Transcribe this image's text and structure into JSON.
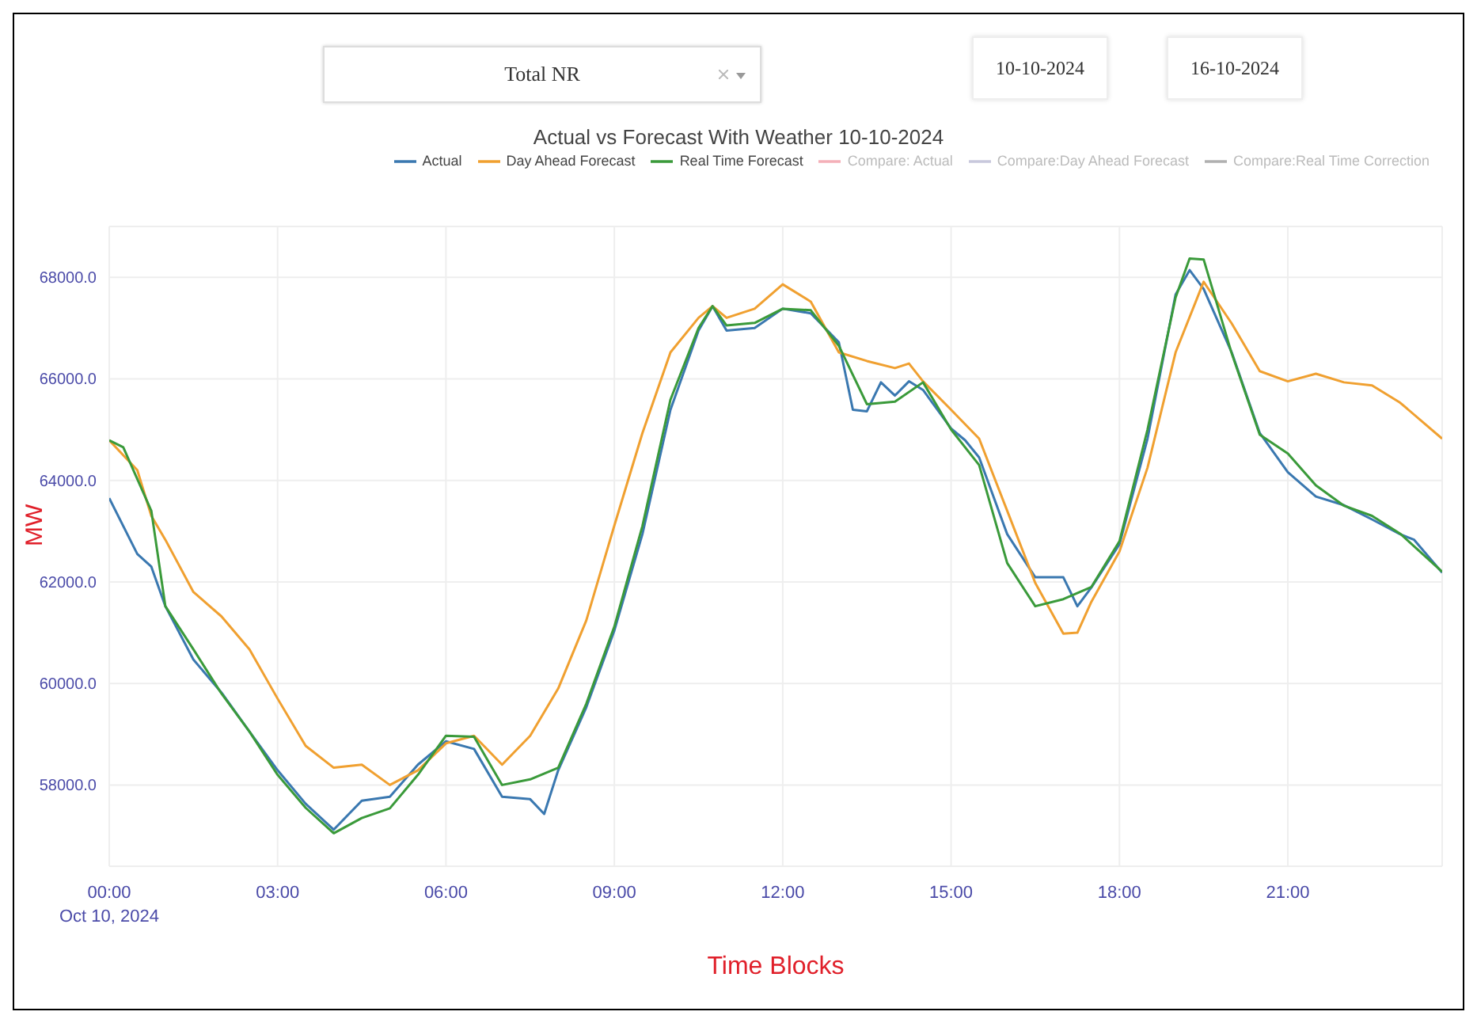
{
  "chart_data": {
    "type": "line",
    "title": "Actual vs Forecast With Weather 10-10-2024",
    "xlabel": "Time Blocks",
    "ylabel": "MW",
    "annotations": [
      "Total NR",
      "10-10-2024",
      "16-10-2024"
    ],
    "xlim": [
      0,
      23.75
    ],
    "ylim": [
      56400,
      69000
    ],
    "xticks": [
      {
        "value": 0,
        "label": "00:00\nOct 10, 2024"
      },
      {
        "value": 3,
        "label": "03:00"
      },
      {
        "value": 6,
        "label": "06:00"
      },
      {
        "value": 9,
        "label": "09:00"
      },
      {
        "value": 12,
        "label": "12:00"
      },
      {
        "value": 15,
        "label": "15:00"
      },
      {
        "value": 18,
        "label": "18:00"
      },
      {
        "value": 21,
        "label": "21:00"
      }
    ],
    "yticks": [
      {
        "value": 58000,
        "label": "58000.0"
      },
      {
        "value": 60000,
        "label": "60000.0"
      },
      {
        "value": 62000,
        "label": "62000.0"
      },
      {
        "value": 64000,
        "label": "64000.0"
      },
      {
        "value": 66000,
        "label": "66000.0"
      },
      {
        "value": 68000,
        "label": "68000.0"
      }
    ],
    "grid": true,
    "legend": "top right",
    "series": [
      {
        "name": "Actual",
        "color": "#3a78b0",
        "x": [
          0,
          0.5,
          0.75,
          1,
          1.5,
          2,
          2.5,
          3,
          3.5,
          4,
          4.5,
          5,
          5.5,
          6,
          6.5,
          7,
          7.5,
          7.75,
          8,
          8.5,
          9,
          9.5,
          10,
          10.5,
          10.75,
          11,
          11.5,
          12,
          12.5,
          13,
          13.25,
          13.5,
          13.75,
          14,
          14.25,
          14.5,
          15,
          15.25,
          15.5,
          16,
          16.5,
          17,
          17.25,
          17.5,
          18,
          18.5,
          19,
          19.25,
          19.5,
          20,
          20.5,
          21,
          21.5,
          22,
          22.5,
          23,
          23.25,
          23.75
        ],
        "values": [
          63650,
          62550,
          62300,
          61520,
          60470,
          59820,
          59050,
          58290,
          57630,
          57120,
          57690,
          57770,
          58400,
          58860,
          58710,
          57770,
          57720,
          57430,
          58290,
          59530,
          61040,
          62940,
          65390,
          66950,
          67430,
          66950,
          67000,
          67380,
          67290,
          66720,
          65390,
          65360,
          65930,
          65670,
          65950,
          65780,
          65020,
          64790,
          64450,
          62940,
          62090,
          62090,
          61520,
          61890,
          62740,
          64820,
          67660,
          68140,
          67770,
          66520,
          64930,
          64160,
          63680,
          63510,
          63230,
          62940,
          62830,
          62180
        ]
      },
      {
        "name": "Day Ahead Forecast",
        "color": "#f0a030",
        "x": [
          0,
          0.5,
          0.75,
          1,
          1.5,
          2,
          2.5,
          3,
          3.5,
          4,
          4.5,
          5,
          5.5,
          6,
          6.5,
          7,
          7.5,
          8,
          8.5,
          9,
          9.5,
          10,
          10.5,
          10.75,
          11,
          11.5,
          12,
          12.5,
          13,
          13.5,
          14,
          14.25,
          14.5,
          15,
          15.5,
          16,
          16.5,
          17,
          17.25,
          17.5,
          18,
          18.5,
          19,
          19.5,
          20,
          20.5,
          21,
          21.5,
          22,
          22.5,
          23,
          23.75
        ],
        "values": [
          64790,
          64200,
          63300,
          62830,
          61800,
          61320,
          60670,
          59700,
          58770,
          58340,
          58400,
          58000,
          58290,
          58820,
          58970,
          58400,
          58970,
          59900,
          61240,
          63110,
          64930,
          66520,
          67200,
          67430,
          67200,
          67380,
          67860,
          67520,
          66520,
          66350,
          66210,
          66300,
          65950,
          65390,
          64820,
          63400,
          61980,
          60980,
          61000,
          61610,
          62600,
          64250,
          66520,
          67910,
          67090,
          66150,
          65950,
          66100,
          65930,
          65870,
          65530,
          64820
        ]
      },
      {
        "name": "Real Time Forecast",
        "color": "#3a9a3a",
        "x": [
          0,
          0.25,
          0.75,
          1,
          1.5,
          2,
          2.5,
          3,
          3.5,
          4,
          4.5,
          5,
          5.5,
          6,
          6.5,
          7,
          7.5,
          8,
          8.5,
          9,
          9.5,
          10,
          10.5,
          10.75,
          11,
          11.5,
          12,
          12.5,
          13,
          13.5,
          14,
          14.5,
          15,
          15.5,
          16,
          16.5,
          17,
          17.5,
          18,
          18.5,
          19,
          19.25,
          19.5,
          20,
          20.5,
          21,
          21.5,
          22,
          22.5,
          23,
          23.75
        ],
        "values": [
          64790,
          64650,
          63400,
          61520,
          60670,
          59800,
          59050,
          58200,
          57550,
          57050,
          57350,
          57540,
          58200,
          58970,
          58950,
          58000,
          58110,
          58340,
          59600,
          61120,
          63100,
          65590,
          67000,
          67430,
          67050,
          67100,
          67380,
          67350,
          66650,
          65500,
          65550,
          65930,
          65000,
          64300,
          62370,
          61520,
          61660,
          61900,
          62800,
          65000,
          67600,
          68370,
          68350,
          66500,
          64900,
          64530,
          63900,
          63500,
          63300,
          62950,
          62200
        ]
      },
      {
        "name": "Compare: Actual",
        "color": "#f4b0b8"
      },
      {
        "name": "Compare:Day Ahead Forecast",
        "color": "#c8c8dc"
      },
      {
        "name": "Compare:Real Time Correction",
        "color": "#b0b0b0"
      }
    ]
  }
}
